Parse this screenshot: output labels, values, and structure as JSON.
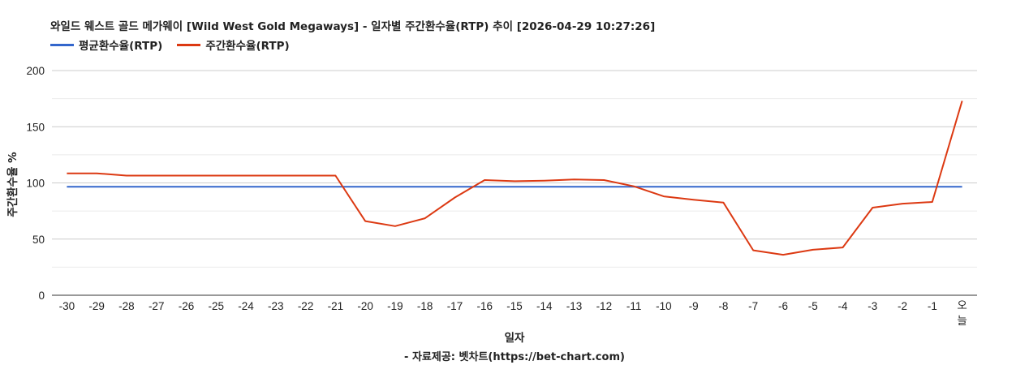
{
  "title": "와일드 웨스트 골드 메가웨이 [Wild West Gold Megaways] - 일자별 주간환수율(RTP) 추이 [2026-04-29 10:27:26]",
  "source": "- 자료제공: 벳차트(https://bet-chart.com)",
  "colors": {
    "avg": "#3366cc",
    "weekly": "#dc3912",
    "grid": "#cccccc",
    "minor_grid": "#ebebeb",
    "axis": "#333333"
  },
  "chart_data": {
    "type": "line",
    "xlabel": "일자",
    "ylabel": "주간환수율 %",
    "ylim": [
      0,
      200
    ],
    "yticks": [
      0,
      50,
      100,
      150,
      200
    ],
    "grid": true,
    "legend_position": "top-left",
    "categories": [
      "-30",
      "-29",
      "-28",
      "-27",
      "-26",
      "-25",
      "-24",
      "-23",
      "-22",
      "-21",
      "-20",
      "-19",
      "-18",
      "-17",
      "-16",
      "-15",
      "-14",
      "-13",
      "-12",
      "-11",
      "-10",
      "-9",
      "-8",
      "-7",
      "-6",
      "-5",
      "-4",
      "-3",
      "-2",
      "-1",
      "오늘"
    ],
    "series": [
      {
        "name": "평균환수율(RTP)",
        "color": "#3366cc",
        "values": [
          96.5,
          96.5,
          96.5,
          96.5,
          96.5,
          96.5,
          96.5,
          96.5,
          96.5,
          96.5,
          96.5,
          96.5,
          96.5,
          96.5,
          96.5,
          96.5,
          96.5,
          96.5,
          96.5,
          96.5,
          96.5,
          96.5,
          96.5,
          96.5,
          96.5,
          96.5,
          96.5,
          96.5,
          96.5,
          96.5,
          96.5
        ]
      },
      {
        "name": "주간환수율(RTP)",
        "color": "#dc3912",
        "values": [
          108.5,
          108.5,
          106.5,
          106.5,
          106.5,
          106.5,
          106.5,
          106.5,
          106.5,
          106.5,
          66,
          61.5,
          68.5,
          87,
          102.5,
          101.5,
          102,
          103,
          102.5,
          97,
          88,
          85,
          82.5,
          40,
          36,
          40.5,
          42.5,
          78,
          81.5,
          83,
          173
        ]
      }
    ]
  }
}
